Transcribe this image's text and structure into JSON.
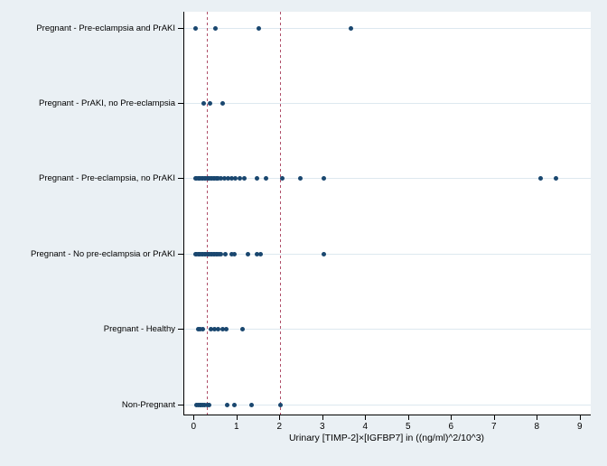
{
  "chart_data": {
    "type": "scatter",
    "variant": "horizontal-strip-plot",
    "title": "",
    "xlabel": "Urinary [TIMP-2]×[IGFBP7] in ((ng/ml)^2/10^3)",
    "ylabel": "",
    "x_ticks": [
      0,
      1,
      2,
      3,
      4,
      5,
      6,
      7,
      8,
      9
    ],
    "xlim": [
      -0.25,
      9.25
    ],
    "grid": "horizontal-category-gridlines",
    "legend": "none",
    "reference_lines": [
      {
        "axis": "x",
        "value": 0.3,
        "style": "dashed"
      },
      {
        "axis": "x",
        "value": 2.0,
        "style": "dashed"
      }
    ],
    "series": [
      {
        "category": "Pregnant - Pre-eclampsia and PrAKI",
        "values": [
          0.03,
          0.49,
          1.5,
          3.64
        ]
      },
      {
        "category": "Pregnant - PrAKI, no Pre-eclampsia",
        "values": [
          0.22,
          0.37,
          0.66
        ]
      },
      {
        "category": "Pregnant - Pre-eclampsia, no PrAKI",
        "values": [
          0.02,
          0.05,
          0.08,
          0.11,
          0.14,
          0.17,
          0.2,
          0.23,
          0.26,
          0.29,
          0.32,
          0.35,
          0.38,
          0.41,
          0.44,
          0.47,
          0.5,
          0.53,
          0.56,
          0.62,
          0.7,
          0.78,
          0.87,
          0.96,
          1.06,
          1.16,
          1.45,
          1.66,
          2.04,
          2.46,
          3.02,
          8.07,
          8.42
        ]
      },
      {
        "category": "Pregnant - No pre-eclampsia or PrAKI",
        "values": [
          0.02,
          0.05,
          0.08,
          0.11,
          0.14,
          0.17,
          0.2,
          0.23,
          0.26,
          0.29,
          0.32,
          0.35,
          0.38,
          0.41,
          0.44,
          0.47,
          0.5,
          0.54,
          0.58,
          0.62,
          0.73,
          0.86,
          0.92,
          1.24,
          1.45,
          1.55,
          3.02
        ]
      },
      {
        "category": "Pregnant - Healthy",
        "values": [
          0.08,
          0.14,
          0.2,
          0.38,
          0.47,
          0.56,
          0.65,
          0.74,
          1.12
        ]
      },
      {
        "category": "Non-Pregnant",
        "values": [
          0.04,
          0.08,
          0.12,
          0.16,
          0.2,
          0.24,
          0.29,
          0.34,
          0.77,
          0.93,
          1.33,
          2.0
        ]
      }
    ],
    "colors": {
      "marker": "#1a476f",
      "reference_line": "#b0506a",
      "gridline": "#dde8ef",
      "background": "#eaf0f4",
      "plot_background": "#ffffff",
      "axis": "#000000"
    }
  }
}
